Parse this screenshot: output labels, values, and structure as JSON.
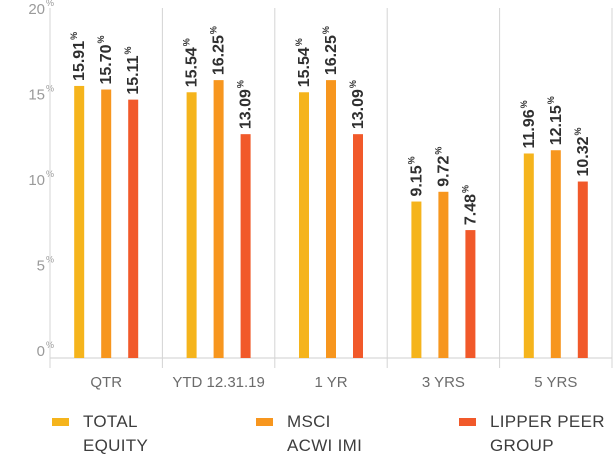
{
  "chart_data": {
    "type": "bar",
    "categories": [
      "QTR",
      "YTD 12.31.19",
      "1 YR",
      "3 YRS",
      "5 YRS"
    ],
    "series": [
      {
        "name": "TOTAL\nEQUITY",
        "color": "#f5b41c",
        "values": [
          15.91,
          15.54,
          15.54,
          9.15,
          11.96
        ]
      },
      {
        "name": "MSCI\nACWI IMI",
        "color": "#f7961e",
        "values": [
          15.7,
          16.25,
          16.25,
          9.72,
          12.15
        ]
      },
      {
        "name": "LIPPER PEER\nGROUP",
        "color": "#f1592a",
        "values": [
          15.11,
          13.09,
          13.09,
          7.48,
          10.32
        ]
      }
    ],
    "data_labels": [
      [
        "15.91",
        "15.70",
        "15.11"
      ],
      [
        "15.54",
        "16.25",
        "13.09"
      ],
      [
        "15.54",
        "16.25",
        "13.09"
      ],
      [
        "9.15",
        "9.72",
        "7.48"
      ],
      [
        "11.96",
        "12.15",
        "10.32"
      ]
    ],
    "label_suffix": "%",
    "y_ticks": [
      {
        "value": 0,
        "label": "0"
      },
      {
        "value": 5,
        "label": "5"
      },
      {
        "value": 10,
        "label": "10"
      },
      {
        "value": 15,
        "label": "15"
      },
      {
        "value": 20,
        "label": "20"
      }
    ],
    "tick_suffix": "%",
    "ylim": [
      0,
      20
    ],
    "grid": false,
    "legend_position": "bottom",
    "title": "",
    "xlabel": "",
    "ylabel": ""
  }
}
